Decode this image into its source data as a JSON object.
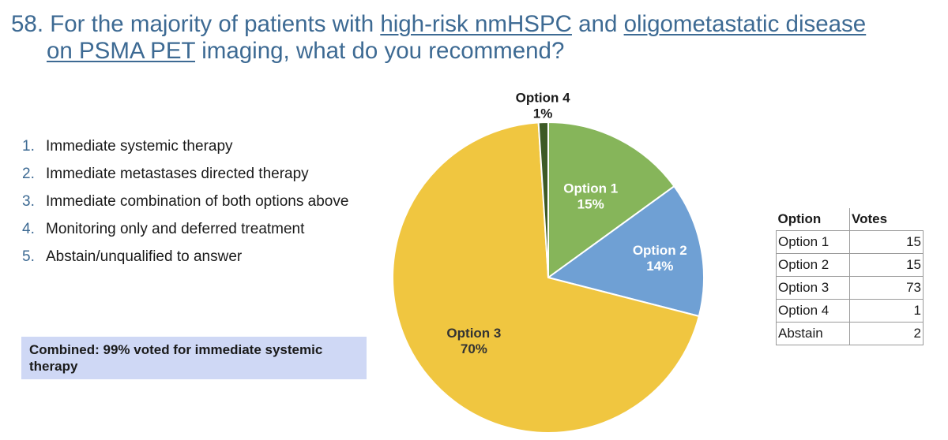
{
  "title": {
    "number": "58.",
    "pre": "For the majority of patients with",
    "link1": "high-risk nmHSPC",
    "and": "and",
    "link2": "oligometastatic disease",
    "link3": "on PSMA PET",
    "post": "imaging, what do you recommend?"
  },
  "options": [
    {
      "num": "1.",
      "text": "Immediate systemic therapy"
    },
    {
      "num": "2.",
      "text": "Immediate metastases directed therapy"
    },
    {
      "num": "3.",
      "text": "Immediate combination of both options above"
    },
    {
      "num": "4.",
      "text": "Monitoring only and deferred treatment"
    },
    {
      "num": "5.",
      "text": "Abstain/unqualified to answer"
    }
  ],
  "combined": "Combined: 99% voted for immediate systemic therapy",
  "chart_data": {
    "type": "pie",
    "slices": [
      {
        "label": "Option 1",
        "value": 15,
        "pct_label": "15%",
        "color": "#86b55a"
      },
      {
        "label": "Option 2",
        "value": 14,
        "pct_label": "14%",
        "color": "#6fa0d4"
      },
      {
        "label": "Option 3",
        "value": 70,
        "pct_label": "70%",
        "color": "#f0c640"
      },
      {
        "label": "Option 4",
        "value": 1,
        "pct_label": "1%",
        "color": "#3d5a26"
      }
    ],
    "start_angle_deg": 0,
    "direction": "clockwise"
  },
  "table": {
    "headers": [
      "Option",
      "Votes"
    ],
    "rows": [
      [
        "Option 1",
        "15"
      ],
      [
        "Option 2",
        "15"
      ],
      [
        "Option 3",
        "73"
      ],
      [
        "Option 4",
        "1"
      ],
      [
        "Abstain",
        "2"
      ]
    ]
  }
}
